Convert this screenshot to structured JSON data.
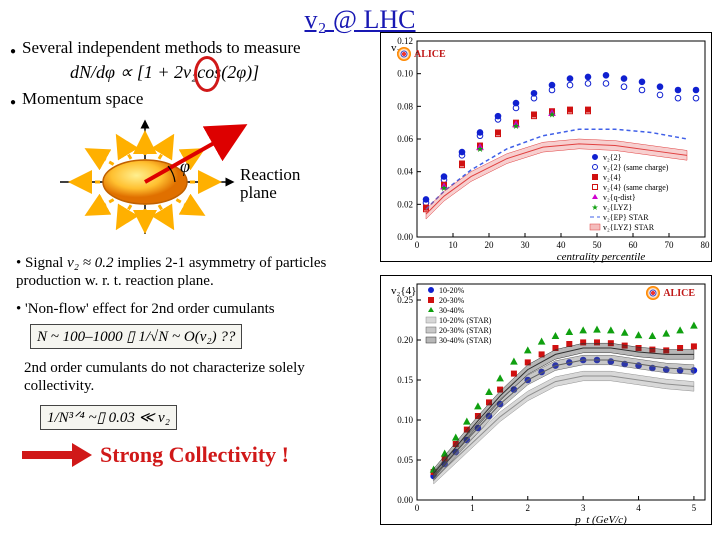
{
  "title": "v₂ @ LHC",
  "bullets": {
    "methods": "Several independent methods to measure",
    "momentum": "Momentum space"
  },
  "formulas": {
    "dndphi": "dN/dφ ∝ [1 + 2v₂cos(2φ)]",
    "reaction": "Reaction plane",
    "phi": "φ",
    "signal_lead": "• Signal",
    "signal_v2": "v₂ ≈ 0.2",
    "signal_rest": "implies 2-1 asymmetry of particles production w. r. t. reaction plane.",
    "nonflow": "• 'Non-flow' effect for 2nd order cumulants",
    "nonflow_formula": "N ~ 100–1000 ▯ 1/√N ~ O(v₂) ??",
    "cumulant_note": "2nd order cumulants do not characterize solely collectivity.",
    "fourth_order": "1/N³ᐟ⁴ ~▯ 0.03 ≪ v₂",
    "strong": "Strong Collectivity !"
  },
  "diagram": {
    "arrow_color": "#ffb000",
    "red_arrow": "#dd0000",
    "ellipse_fill_outer": "#ffd040",
    "ellipse_fill_inner": "#f08010",
    "ellipse_stroke": "#c06000"
  },
  "chart_top": {
    "type": "scatter+line",
    "xlabel": "centrality percentile",
    "ylabel": "v₂",
    "xlim": [
      0,
      80
    ],
    "xtick_step": 10,
    "ylim": [
      0,
      0.12
    ],
    "ytick_step": 0.02,
    "background": "#ffffff",
    "grid_color": "#dddddd",
    "series": [
      {
        "label": "v₂{2}",
        "marker": "●",
        "color": "#1020d0",
        "fill": true,
        "points": [
          [
            2.5,
            0.023
          ],
          [
            7.5,
            0.037
          ],
          [
            12.5,
            0.052
          ],
          [
            17.5,
            0.064
          ],
          [
            22.5,
            0.074
          ],
          [
            27.5,
            0.082
          ],
          [
            32.5,
            0.088
          ],
          [
            37.5,
            0.093
          ],
          [
            42.5,
            0.097
          ],
          [
            47.5,
            0.098
          ],
          [
            52.5,
            0.099
          ],
          [
            57.5,
            0.097
          ],
          [
            62.5,
            0.095
          ],
          [
            67.5,
            0.092
          ],
          [
            72.5,
            0.09
          ],
          [
            77.5,
            0.09
          ]
        ]
      },
      {
        "label": "v₂{2} (same charge)",
        "marker": "○",
        "color": "#1020d0",
        "fill": false,
        "points": [
          [
            2.5,
            0.021
          ],
          [
            7.5,
            0.035
          ],
          [
            12.5,
            0.05
          ],
          [
            17.5,
            0.062
          ],
          [
            22.5,
            0.072
          ],
          [
            27.5,
            0.079
          ],
          [
            32.5,
            0.085
          ],
          [
            37.5,
            0.09
          ],
          [
            42.5,
            0.093
          ],
          [
            47.5,
            0.094
          ],
          [
            52.5,
            0.094
          ],
          [
            57.5,
            0.092
          ],
          [
            62.5,
            0.09
          ],
          [
            67.5,
            0.087
          ],
          [
            72.5,
            0.085
          ],
          [
            77.5,
            0.085
          ]
        ]
      },
      {
        "label": "v₂{4}",
        "marker": "■",
        "color": "#d01010",
        "fill": true,
        "points": [
          [
            2.5,
            0.018
          ],
          [
            7.5,
            0.032
          ],
          [
            12.5,
            0.045
          ],
          [
            17.5,
            0.056
          ],
          [
            22.5,
            0.064
          ],
          [
            27.5,
            0.07
          ],
          [
            32.5,
            0.075
          ],
          [
            37.5,
            0.077
          ],
          [
            42.5,
            0.078
          ],
          [
            47.5,
            0.078
          ]
        ]
      },
      {
        "label": "v₂{4} (same charge)",
        "marker": "□",
        "color": "#d01010",
        "fill": false,
        "points": [
          [
            2.5,
            0.017
          ],
          [
            7.5,
            0.031
          ],
          [
            12.5,
            0.044
          ],
          [
            17.5,
            0.055
          ],
          [
            22.5,
            0.063
          ],
          [
            27.5,
            0.069
          ],
          [
            32.5,
            0.074
          ],
          [
            37.5,
            0.076
          ],
          [
            42.5,
            0.077
          ],
          [
            47.5,
            0.077
          ]
        ]
      },
      {
        "label": "v₂{q-dist}",
        "marker": "▲",
        "color": "#d000d0",
        "fill": true,
        "points": [
          [
            7.5,
            0.031
          ],
          [
            17.5,
            0.055
          ],
          [
            27.5,
            0.069
          ],
          [
            37.5,
            0.076
          ]
        ]
      },
      {
        "label": "v₂{LYZ}",
        "marker": "★",
        "color": "#10a010",
        "fill": true,
        "points": [
          [
            7.5,
            0.03
          ],
          [
            17.5,
            0.054
          ],
          [
            27.5,
            0.068
          ],
          [
            37.5,
            0.075
          ]
        ]
      },
      {
        "label": "v₂{EP} STAR",
        "type": "line",
        "color": "#4060e8",
        "dash": "4,3",
        "points": [
          [
            2.5,
            0.017
          ],
          [
            7.5,
            0.028
          ],
          [
            15,
            0.041
          ],
          [
            25,
            0.054
          ],
          [
            35,
            0.062
          ],
          [
            45,
            0.066
          ],
          [
            55,
            0.066
          ],
          [
            65,
            0.064
          ],
          [
            75,
            0.06
          ]
        ]
      },
      {
        "label": "v₂{LYZ} STAR",
        "type": "band",
        "color": "#e04040",
        "points": [
          [
            2.5,
            0.014
          ],
          [
            7.5,
            0.025
          ],
          [
            15,
            0.037
          ],
          [
            25,
            0.048
          ],
          [
            35,
            0.055
          ],
          [
            45,
            0.057
          ],
          [
            55,
            0.056
          ],
          [
            65,
            0.053
          ],
          [
            75,
            0.05
          ]
        ],
        "band": 0.003
      }
    ]
  },
  "chart_bot": {
    "type": "scatter+band",
    "xlabel": "p_t (GeV/c)",
    "ylabel": "v₂{4}",
    "xlim": [
      0,
      5.2
    ],
    "xtick_step": 1,
    "ylim": [
      0,
      0.27
    ],
    "ytick_step": 0.05,
    "background": "#ffffff",
    "series": [
      {
        "label": "10-20%",
        "marker": "●",
        "color": "#1020d0",
        "points": [
          [
            0.3,
            0.03
          ],
          [
            0.5,
            0.045
          ],
          [
            0.7,
            0.06
          ],
          [
            0.9,
            0.075
          ],
          [
            1.1,
            0.09
          ],
          [
            1.3,
            0.105
          ],
          [
            1.5,
            0.12
          ],
          [
            1.75,
            0.138
          ],
          [
            2.0,
            0.15
          ],
          [
            2.25,
            0.16
          ],
          [
            2.5,
            0.168
          ],
          [
            2.75,
            0.172
          ],
          [
            3.0,
            0.175
          ],
          [
            3.25,
            0.175
          ],
          [
            3.5,
            0.173
          ],
          [
            3.75,
            0.17
          ],
          [
            4.0,
            0.168
          ],
          [
            4.25,
            0.165
          ],
          [
            4.5,
            0.163
          ],
          [
            4.75,
            0.162
          ],
          [
            5.0,
            0.162
          ]
        ]
      },
      {
        "label": "20-30%",
        "marker": "■",
        "color": "#d01010",
        "points": [
          [
            0.3,
            0.035
          ],
          [
            0.5,
            0.052
          ],
          [
            0.7,
            0.07
          ],
          [
            0.9,
            0.088
          ],
          [
            1.1,
            0.105
          ],
          [
            1.3,
            0.122
          ],
          [
            1.5,
            0.138
          ],
          [
            1.75,
            0.158
          ],
          [
            2.0,
            0.172
          ],
          [
            2.25,
            0.182
          ],
          [
            2.5,
            0.19
          ],
          [
            2.75,
            0.195
          ],
          [
            3.0,
            0.197
          ],
          [
            3.25,
            0.197
          ],
          [
            3.5,
            0.196
          ],
          [
            3.75,
            0.193
          ],
          [
            4.0,
            0.19
          ],
          [
            4.25,
            0.188
          ],
          [
            4.5,
            0.187
          ],
          [
            4.75,
            0.19
          ],
          [
            5.0,
            0.192
          ]
        ]
      },
      {
        "label": "30-40%",
        "marker": "▲",
        "color": "#10a010",
        "points": [
          [
            0.3,
            0.038
          ],
          [
            0.5,
            0.058
          ],
          [
            0.7,
            0.078
          ],
          [
            0.9,
            0.098
          ],
          [
            1.1,
            0.117
          ],
          [
            1.3,
            0.135
          ],
          [
            1.5,
            0.152
          ],
          [
            1.75,
            0.173
          ],
          [
            2.0,
            0.187
          ],
          [
            2.25,
            0.198
          ],
          [
            2.5,
            0.205
          ],
          [
            2.75,
            0.21
          ],
          [
            3.0,
            0.212
          ],
          [
            3.25,
            0.213
          ],
          [
            3.5,
            0.212
          ],
          [
            3.75,
            0.209
          ],
          [
            4.0,
            0.206
          ],
          [
            4.25,
            0.205
          ],
          [
            4.5,
            0.208
          ],
          [
            4.75,
            0.212
          ],
          [
            5.0,
            0.218
          ]
        ]
      },
      {
        "label": "10-20% (STAR)",
        "type": "hatch",
        "color": "#909090",
        "points": [
          [
            0.3,
            0.026
          ],
          [
            0.7,
            0.052
          ],
          [
            1.1,
            0.078
          ],
          [
            1.5,
            0.104
          ],
          [
            2.0,
            0.13
          ],
          [
            2.5,
            0.148
          ],
          [
            3.0,
            0.155
          ],
          [
            3.5,
            0.155
          ],
          [
            4.0,
            0.15
          ],
          [
            4.5,
            0.145
          ],
          [
            5.0,
            0.142
          ]
        ],
        "band": 0.006
      },
      {
        "label": "20-30% (STAR)",
        "type": "hatch",
        "color": "#606060",
        "points": [
          [
            0.3,
            0.03
          ],
          [
            0.7,
            0.06
          ],
          [
            1.1,
            0.09
          ],
          [
            1.5,
            0.12
          ],
          [
            2.0,
            0.15
          ],
          [
            2.5,
            0.168
          ],
          [
            3.0,
            0.175
          ],
          [
            3.5,
            0.175
          ],
          [
            4.0,
            0.17
          ],
          [
            4.5,
            0.165
          ],
          [
            5.0,
            0.163
          ]
        ],
        "band": 0.006
      },
      {
        "label": "30-40% (STAR)",
        "type": "hatch",
        "color": "#303030",
        "points": [
          [
            0.3,
            0.033
          ],
          [
            0.7,
            0.066
          ],
          [
            1.1,
            0.099
          ],
          [
            1.5,
            0.13
          ],
          [
            2.0,
            0.163
          ],
          [
            2.5,
            0.182
          ],
          [
            3.0,
            0.19
          ],
          [
            3.5,
            0.19
          ],
          [
            4.0,
            0.185
          ],
          [
            4.5,
            0.182
          ],
          [
            5.0,
            0.182
          ]
        ],
        "band": 0.006
      }
    ]
  }
}
